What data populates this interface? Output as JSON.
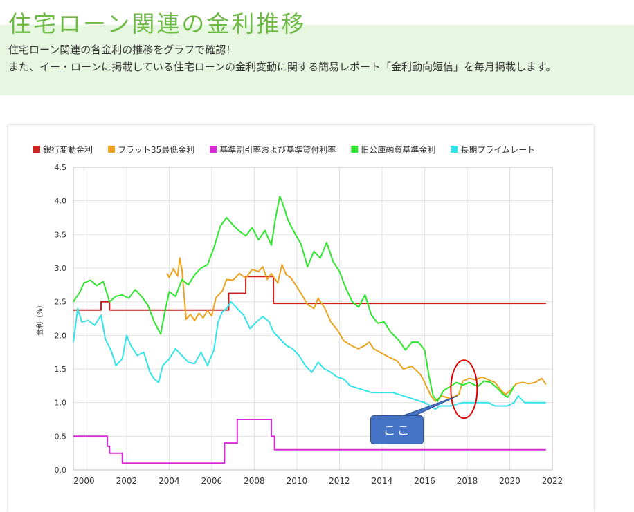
{
  "header": {
    "title": "住宅ローン関連の金利推移",
    "line1": "住宅ローン関連の各金利の推移をグラフで確認！",
    "line2": "また、イー・ローンに掲載している住宅ローンの金利変動に関する簡易レポート「金利動向短信」を毎月掲載します。"
  },
  "annotation": {
    "label": "ここ",
    "ellipse_color": "#e00000",
    "box_color": "#4472c4"
  },
  "chart_data": {
    "type": "line",
    "ylabel": "金利（%）",
    "xlim": [
      1999.5,
      2022
    ],
    "ylim": [
      0,
      4.5
    ],
    "x_ticks": [
      "2000",
      "2002",
      "2004",
      "2006",
      "2008",
      "2010",
      "2012",
      "2014",
      "2016",
      "2018",
      "2020",
      "2022"
    ],
    "y_ticks": [
      "0.0",
      "0.5",
      "1.0",
      "1.5",
      "2.0",
      "2.5",
      "3.0",
      "3.5",
      "4.0",
      "4.5"
    ],
    "grid": true,
    "legend": "top",
    "series": [
      {
        "name": "銀行変動金利",
        "color": "#d21f1f",
        "step": true,
        "points": [
          [
            1999.5,
            2.375
          ],
          [
            2000.8,
            2.375
          ],
          [
            2000.8,
            2.5
          ],
          [
            2001.2,
            2.5
          ],
          [
            2001.2,
            2.375
          ],
          [
            2006.8,
            2.375
          ],
          [
            2006.8,
            2.625
          ],
          [
            2007.6,
            2.625
          ],
          [
            2007.6,
            2.875
          ],
          [
            2008.9,
            2.875
          ],
          [
            2008.9,
            2.475
          ],
          [
            2021.7,
            2.475
          ]
        ]
      },
      {
        "name": "フラット35最低金利",
        "color": "#eba21f",
        "step": false,
        "points": [
          [
            2003.9,
            2.92
          ],
          [
            2004.0,
            2.86
          ],
          [
            2004.2,
            2.99
          ],
          [
            2004.4,
            2.88
          ],
          [
            2004.5,
            3.15
          ],
          [
            2004.6,
            2.97
          ],
          [
            2004.8,
            2.24
          ],
          [
            2005.0,
            2.31
          ],
          [
            2005.2,
            2.22
          ],
          [
            2005.4,
            2.33
          ],
          [
            2005.6,
            2.26
          ],
          [
            2005.8,
            2.37
          ],
          [
            2006.0,
            2.29
          ],
          [
            2006.2,
            2.56
          ],
          [
            2006.5,
            2.66
          ],
          [
            2006.7,
            2.83
          ],
          [
            2007.0,
            2.82
          ],
          [
            2007.3,
            2.92
          ],
          [
            2007.6,
            2.85
          ],
          [
            2007.9,
            2.98
          ],
          [
            2008.2,
            2.95
          ],
          [
            2008.4,
            3.02
          ],
          [
            2008.6,
            2.83
          ],
          [
            2008.8,
            2.92
          ],
          [
            2009.1,
            2.78
          ],
          [
            2009.3,
            3.05
          ],
          [
            2009.5,
            2.9
          ],
          [
            2009.7,
            2.86
          ],
          [
            2009.9,
            2.77
          ],
          [
            2010.2,
            2.62
          ],
          [
            2010.5,
            2.46
          ],
          [
            2010.8,
            2.4
          ],
          [
            2011.0,
            2.55
          ],
          [
            2011.3,
            2.41
          ],
          [
            2011.6,
            2.2
          ],
          [
            2011.9,
            2.08
          ],
          [
            2012.2,
            1.92
          ],
          [
            2012.6,
            1.84
          ],
          [
            2012.9,
            1.8
          ],
          [
            2013.2,
            1.85
          ],
          [
            2013.4,
            1.9
          ],
          [
            2013.6,
            1.8
          ],
          [
            2013.9,
            1.75
          ],
          [
            2014.3,
            1.68
          ],
          [
            2014.7,
            1.62
          ],
          [
            2015.0,
            1.5
          ],
          [
            2015.4,
            1.54
          ],
          [
            2015.8,
            1.42
          ],
          [
            2016.0,
            1.3
          ],
          [
            2016.3,
            1.1
          ],
          [
            2016.5,
            1.02
          ],
          [
            2016.8,
            1.1
          ],
          [
            2017.2,
            1.06
          ],
          [
            2017.6,
            1.12
          ],
          [
            2017.8,
            1.32
          ],
          [
            2018.1,
            1.36
          ],
          [
            2018.4,
            1.34
          ],
          [
            2018.7,
            1.38
          ],
          [
            2019.0,
            1.34
          ],
          [
            2019.3,
            1.3
          ],
          [
            2019.6,
            1.18
          ],
          [
            2019.8,
            1.12
          ],
          [
            2020.1,
            1.2
          ],
          [
            2020.3,
            1.28
          ],
          [
            2020.6,
            1.3
          ],
          [
            2020.9,
            1.28
          ],
          [
            2021.2,
            1.3
          ],
          [
            2021.5,
            1.36
          ],
          [
            2021.7,
            1.27
          ]
        ]
      },
      {
        "name": "基準割引率および基準貸付利率",
        "color": "#d92cd9",
        "step": true,
        "points": [
          [
            1999.5,
            0.5
          ],
          [
            2001.1,
            0.5
          ],
          [
            2001.1,
            0.35
          ],
          [
            2001.2,
            0.35
          ],
          [
            2001.2,
            0.25
          ],
          [
            2001.8,
            0.25
          ],
          [
            2001.8,
            0.1
          ],
          [
            2006.6,
            0.1
          ],
          [
            2006.6,
            0.4
          ],
          [
            2007.2,
            0.4
          ],
          [
            2007.2,
            0.75
          ],
          [
            2008.8,
            0.75
          ],
          [
            2008.8,
            0.5
          ],
          [
            2008.95,
            0.5
          ],
          [
            2008.95,
            0.3
          ],
          [
            2021.7,
            0.3
          ]
        ]
      },
      {
        "name": "旧公庫融資基準金利",
        "color": "#2ee62e",
        "step": false,
        "points": [
          [
            1999.5,
            2.5
          ],
          [
            1999.8,
            2.64
          ],
          [
            2000.0,
            2.78
          ],
          [
            2000.3,
            2.82
          ],
          [
            2000.6,
            2.74
          ],
          [
            2000.9,
            2.8
          ],
          [
            2001.2,
            2.5
          ],
          [
            2001.5,
            2.58
          ],
          [
            2001.8,
            2.6
          ],
          [
            2002.1,
            2.55
          ],
          [
            2002.4,
            2.68
          ],
          [
            2002.7,
            2.58
          ],
          [
            2003.0,
            2.45
          ],
          [
            2003.3,
            2.2
          ],
          [
            2003.6,
            2.02
          ],
          [
            2003.8,
            2.35
          ],
          [
            2004.0,
            2.65
          ],
          [
            2004.3,
            2.58
          ],
          [
            2004.6,
            2.83
          ],
          [
            2004.9,
            2.75
          ],
          [
            2005.2,
            2.9
          ],
          [
            2005.5,
            3.0
          ],
          [
            2005.8,
            3.05
          ],
          [
            2006.1,
            3.3
          ],
          [
            2006.4,
            3.62
          ],
          [
            2006.7,
            3.75
          ],
          [
            2007.0,
            3.64
          ],
          [
            2007.3,
            3.55
          ],
          [
            2007.6,
            3.48
          ],
          [
            2007.9,
            3.6
          ],
          [
            2008.2,
            3.42
          ],
          [
            2008.5,
            3.56
          ],
          [
            2008.8,
            3.34
          ],
          [
            2009.0,
            3.75
          ],
          [
            2009.2,
            4.07
          ],
          [
            2009.4,
            3.9
          ],
          [
            2009.6,
            3.7
          ],
          [
            2009.9,
            3.52
          ],
          [
            2010.2,
            3.35
          ],
          [
            2010.5,
            3.02
          ],
          [
            2010.8,
            3.25
          ],
          [
            2011.1,
            3.15
          ],
          [
            2011.4,
            3.38
          ],
          [
            2011.7,
            3.1
          ],
          [
            2012.0,
            2.95
          ],
          [
            2012.3,
            2.7
          ],
          [
            2012.6,
            2.5
          ],
          [
            2012.9,
            2.42
          ],
          [
            2013.2,
            2.6
          ],
          [
            2013.5,
            2.3
          ],
          [
            2013.8,
            2.18
          ],
          [
            2014.1,
            2.2
          ],
          [
            2014.4,
            2.05
          ],
          [
            2014.8,
            1.92
          ],
          [
            2015.1,
            1.78
          ],
          [
            2015.4,
            1.9
          ],
          [
            2015.7,
            1.9
          ],
          [
            2016.0,
            1.78
          ],
          [
            2016.2,
            1.4
          ],
          [
            2016.4,
            1.1
          ],
          [
            2016.6,
            1.02
          ],
          [
            2016.9,
            1.18
          ],
          [
            2017.2,
            1.24
          ],
          [
            2017.5,
            1.3
          ],
          [
            2017.8,
            1.26
          ],
          [
            2018.1,
            1.3
          ],
          [
            2018.5,
            1.24
          ],
          [
            2018.8,
            1.32
          ],
          [
            2019.1,
            1.3
          ],
          [
            2019.4,
            1.22
          ],
          [
            2019.7,
            1.12
          ],
          [
            2019.9,
            1.08
          ],
          [
            2020.1,
            1.18
          ],
          [
            2020.2,
            1.25
          ]
        ]
      },
      {
        "name": "長期プライムレート",
        "color": "#33e3ea",
        "step": false,
        "points": [
          [
            1999.5,
            1.9
          ],
          [
            1999.7,
            2.4
          ],
          [
            1999.9,
            2.2
          ],
          [
            2000.2,
            2.22
          ],
          [
            2000.5,
            2.15
          ],
          [
            2000.8,
            2.3
          ],
          [
            2001.0,
            1.95
          ],
          [
            2001.3,
            1.75
          ],
          [
            2001.5,
            1.55
          ],
          [
            2001.8,
            1.65
          ],
          [
            2002.0,
            2.0
          ],
          [
            2002.2,
            1.85
          ],
          [
            2002.5,
            1.7
          ],
          [
            2002.8,
            1.75
          ],
          [
            2003.1,
            1.45
          ],
          [
            2003.3,
            1.35
          ],
          [
            2003.5,
            1.3
          ],
          [
            2003.7,
            1.55
          ],
          [
            2004.0,
            1.65
          ],
          [
            2004.3,
            1.8
          ],
          [
            2004.6,
            1.7
          ],
          [
            2004.9,
            1.6
          ],
          [
            2005.2,
            1.58
          ],
          [
            2005.5,
            1.75
          ],
          [
            2005.8,
            1.55
          ],
          [
            2006.1,
            1.78
          ],
          [
            2006.3,
            2.2
          ],
          [
            2006.5,
            2.35
          ],
          [
            2006.7,
            2.4
          ],
          [
            2006.9,
            2.5
          ],
          [
            2007.2,
            2.4
          ],
          [
            2007.5,
            2.3
          ],
          [
            2007.8,
            2.1
          ],
          [
            2008.1,
            2.2
          ],
          [
            2008.4,
            2.28
          ],
          [
            2008.7,
            2.2
          ],
          [
            2008.9,
            2.05
          ],
          [
            2009.2,
            1.95
          ],
          [
            2009.5,
            1.85
          ],
          [
            2009.8,
            1.8
          ],
          [
            2010.1,
            1.7
          ],
          [
            2010.4,
            1.55
          ],
          [
            2010.7,
            1.45
          ],
          [
            2011.0,
            1.6
          ],
          [
            2011.3,
            1.5
          ],
          [
            2011.6,
            1.45
          ],
          [
            2011.9,
            1.38
          ],
          [
            2012.2,
            1.35
          ],
          [
            2012.5,
            1.25
          ],
          [
            2013.0,
            1.2
          ],
          [
            2013.5,
            1.15
          ],
          [
            2014.0,
            1.15
          ],
          [
            2014.5,
            1.15
          ],
          [
            2015.0,
            1.1
          ],
          [
            2015.5,
            1.05
          ],
          [
            2016.0,
            1.0
          ],
          [
            2016.3,
            0.95
          ],
          [
            2016.5,
            0.9
          ],
          [
            2016.7,
            0.95
          ],
          [
            2017.2,
            0.95
          ],
          [
            2017.8,
            1.0
          ],
          [
            2018.5,
            1.0
          ],
          [
            2019.0,
            1.0
          ],
          [
            2019.3,
            0.95
          ],
          [
            2019.9,
            0.95
          ],
          [
            2020.2,
            1.0
          ],
          [
            2020.4,
            1.1
          ],
          [
            2020.7,
            1.0
          ],
          [
            2021.7,
            1.0
          ]
        ]
      }
    ]
  }
}
